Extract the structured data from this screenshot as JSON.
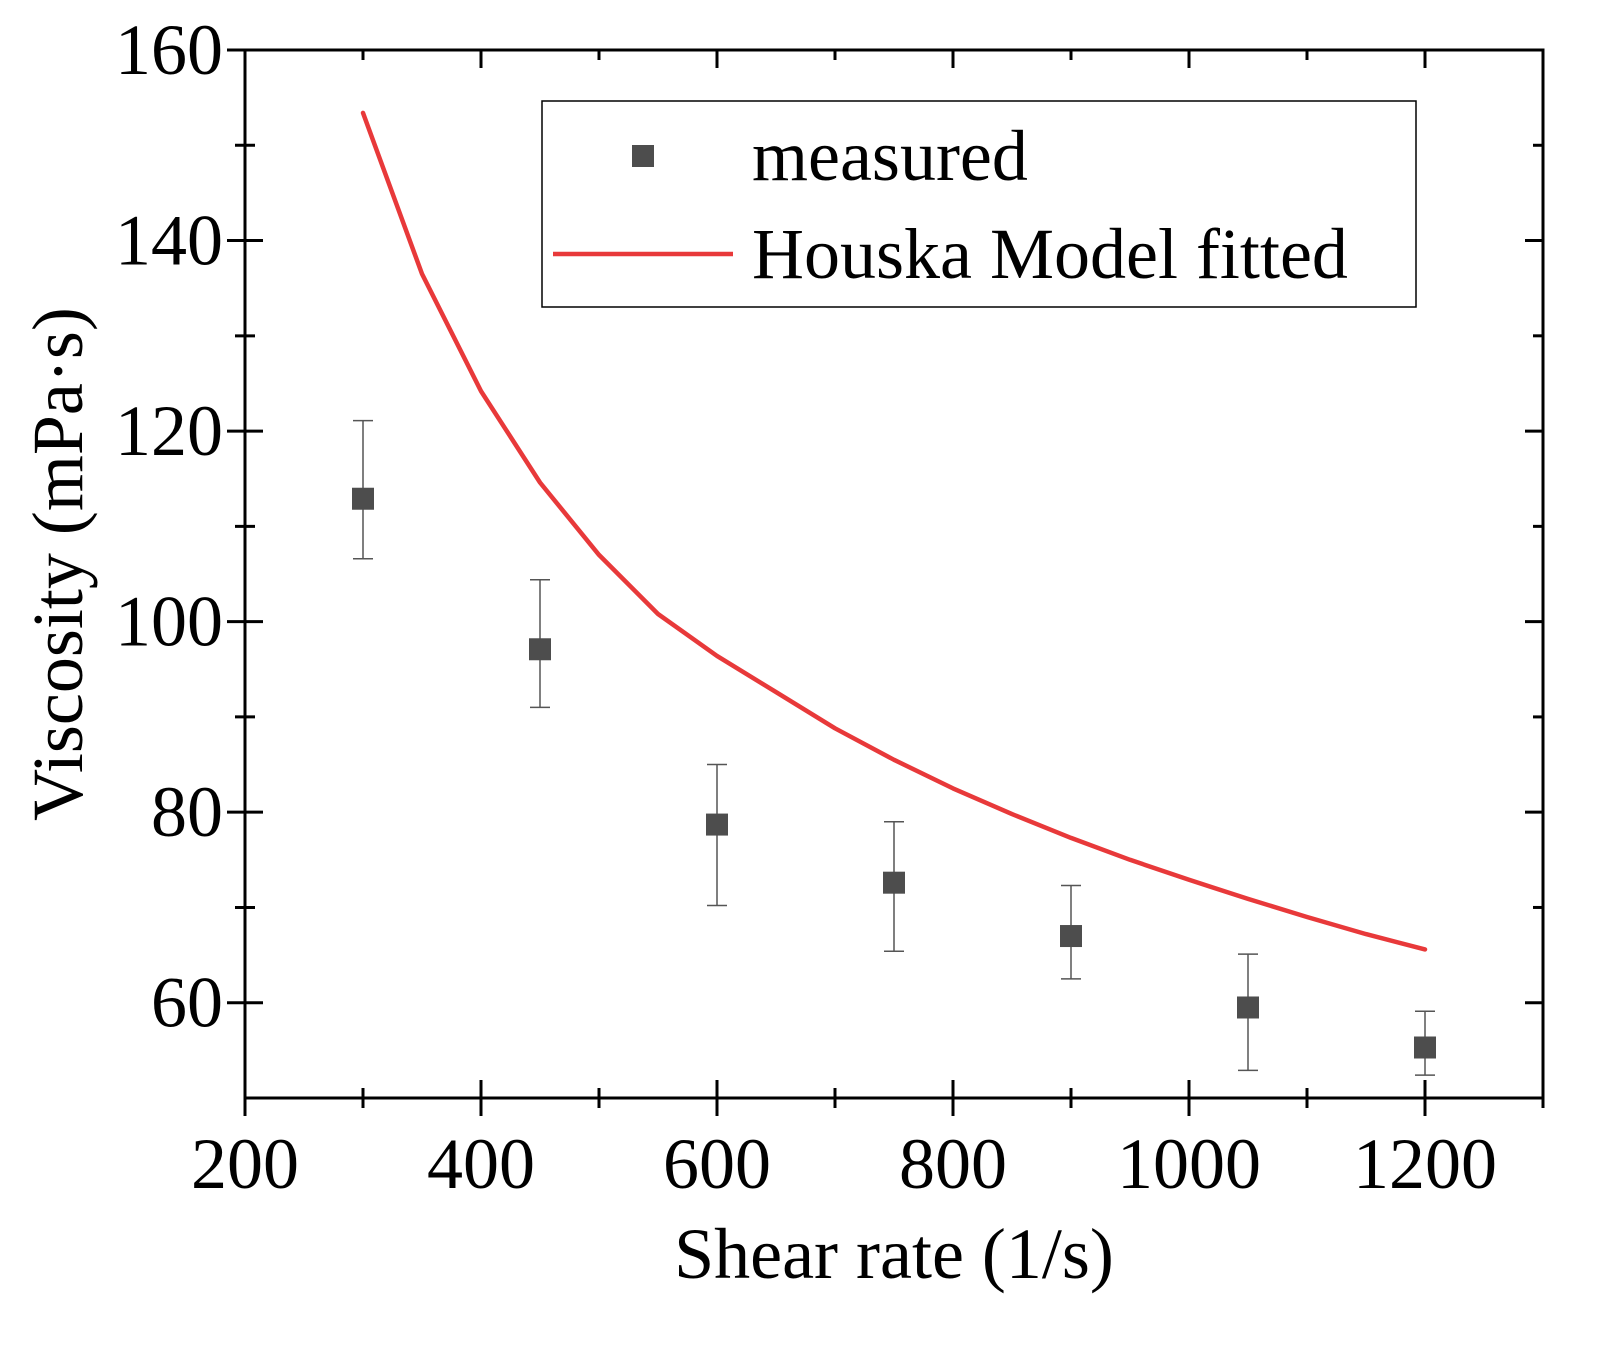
{
  "chart_data": {
    "type": "scatter",
    "title": "",
    "xlabel": "Shear rate (1/s)",
    "ylabel": "Viscosity (mPa·s)",
    "xlim": [
      200,
      1300
    ],
    "ylim": [
      50,
      160
    ],
    "xticks": [
      200,
      400,
      600,
      800,
      1000,
      1200
    ],
    "yticks": [
      60,
      80,
      100,
      120,
      140,
      160
    ],
    "xtick_labels": [
      "200",
      "400",
      "600",
      "800",
      "1000",
      "1200"
    ],
    "ytick_labels": [
      "60",
      "80",
      "100",
      "120",
      "140",
      "160"
    ],
    "legend_position": "top-right",
    "series": [
      {
        "name": "measured",
        "kind": "scatter-errorbar",
        "color": "#4d4d4d",
        "x": [
          300,
          450,
          600,
          750,
          900,
          1050,
          1200
        ],
        "y": [
          112.9,
          97.1,
          78.7,
          72.6,
          67.0,
          59.5,
          55.3
        ],
        "err_low": [
          106.6,
          91.0,
          70.2,
          65.4,
          62.5,
          52.9,
          52.4
        ],
        "err_high": [
          121.1,
          104.4,
          85.0,
          79.0,
          72.3,
          65.1,
          59.1
        ]
      },
      {
        "name": "Houska Model fitted",
        "kind": "line",
        "color": "#e8393a",
        "x": [
          300,
          350,
          400,
          450,
          500,
          550,
          600,
          650,
          700,
          750,
          800,
          850,
          900,
          950,
          1000,
          1050,
          1100,
          1150,
          1200
        ],
        "y": [
          153.4,
          136.5,
          124.2,
          114.6,
          107.0,
          100.8,
          96.4,
          92.6,
          88.8,
          85.5,
          82.5,
          79.8,
          77.3,
          75.0,
          72.9,
          70.9,
          69.0,
          67.2,
          65.6
        ]
      }
    ]
  }
}
